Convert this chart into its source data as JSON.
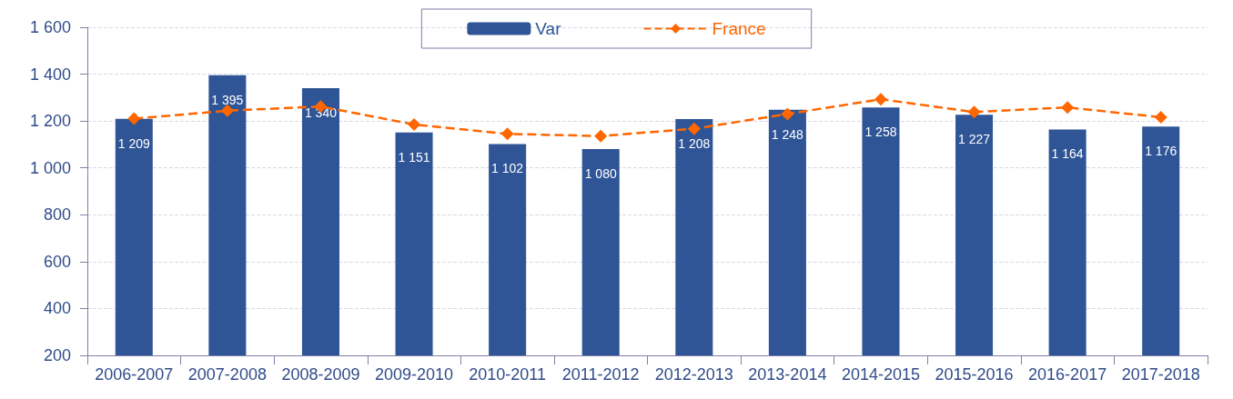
{
  "chart_data": {
    "type": "bar",
    "categories": [
      "2006-2007",
      "2007-2008",
      "2008-2009",
      "2009-2010",
      "2010-2011",
      "2011-2012",
      "2012-2013",
      "2013-2014",
      "2014-2015",
      "2015-2016",
      "2016-2017",
      "2017-2018"
    ],
    "series": [
      {
        "name": "Var",
        "color": "#2f5597",
        "values": [
          1209,
          1395,
          1340,
          1151,
          1102,
          1080,
          1208,
          1248,
          1258,
          1227,
          1164,
          1176
        ],
        "data_labels": true
      },
      {
        "name": "France",
        "type": "line",
        "color": "#ff6600",
        "values": [
          1210,
          1244,
          1262,
          1185,
          1145,
          1136,
          1167,
          1230,
          1293,
          1238,
          1258,
          1216
        ],
        "marker": "diamond",
        "line_style": "dashed"
      }
    ],
    "ylim": [
      200,
      1600
    ],
    "yticks": [
      200,
      400,
      600,
      800,
      1000,
      1200,
      1400,
      1600
    ],
    "grid": "y",
    "legend": "top"
  }
}
